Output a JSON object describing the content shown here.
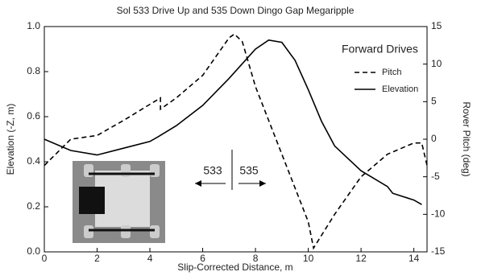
{
  "chart_data": {
    "type": "line",
    "title": "Sol 533 Drive Up and 535 Down Dingo Gap Megaripple",
    "x_label": "Slip-Corrected Distance, m",
    "y_label": "Elevation (-Z, m)",
    "y2_label": "Rover Pitch (deg)",
    "legend_title": "Forward Drives",
    "legend_position": "upper right",
    "annotations": [
      "533",
      "535"
    ],
    "xlim": [
      0,
      14.5
    ],
    "xticks": [
      0,
      2,
      4,
      6,
      8,
      10,
      12,
      14
    ],
    "ylim": [
      0,
      1
    ],
    "yticks": [
      {
        "value": 0,
        "label": "0.0"
      },
      0.2,
      0.4,
      0.6,
      0.8,
      {
        "value": 1,
        "label": "1.0"
      }
    ],
    "y2lim": [
      -15,
      15
    ],
    "y2ticks": [
      -15,
      -10,
      -5,
      0,
      5,
      10,
      15
    ],
    "series": [
      {
        "name": "Pitch",
        "color": "#000000",
        "dashed": true,
        "axis": "y2",
        "x": [
          0,
          1,
          2,
          3,
          4.4,
          4.4,
          5,
          6,
          7,
          7.2,
          7.5,
          8,
          9,
          10,
          10.2,
          11,
          12,
          13,
          14,
          14.3,
          14.5
        ],
        "values": [
          -3.5,
          0,
          0.5,
          2.5,
          5.5,
          4,
          5.5,
          8.5,
          13.5,
          14,
          13,
          7,
          -2,
          -11,
          -14.5,
          -10,
          -5,
          -2,
          -0.5,
          -0.5,
          -3.5
        ]
      },
      {
        "name": "Elevation",
        "color": "#000000",
        "dashed": false,
        "x": [
          0,
          1,
          2,
          3,
          4,
          4.3,
          5,
          6,
          7,
          8,
          8.5,
          9,
          9.5,
          10,
          10.5,
          11,
          12,
          13,
          13.2,
          14,
          14.3
        ],
        "values": [
          0.5,
          0.45,
          0.43,
          0.46,
          0.49,
          0.51,
          0.56,
          0.65,
          0.77,
          0.9,
          0.94,
          0.93,
          0.85,
          0.72,
          0.58,
          0.47,
          0.36,
          0.29,
          0.26,
          0.23,
          0.21
        ]
      }
    ]
  }
}
